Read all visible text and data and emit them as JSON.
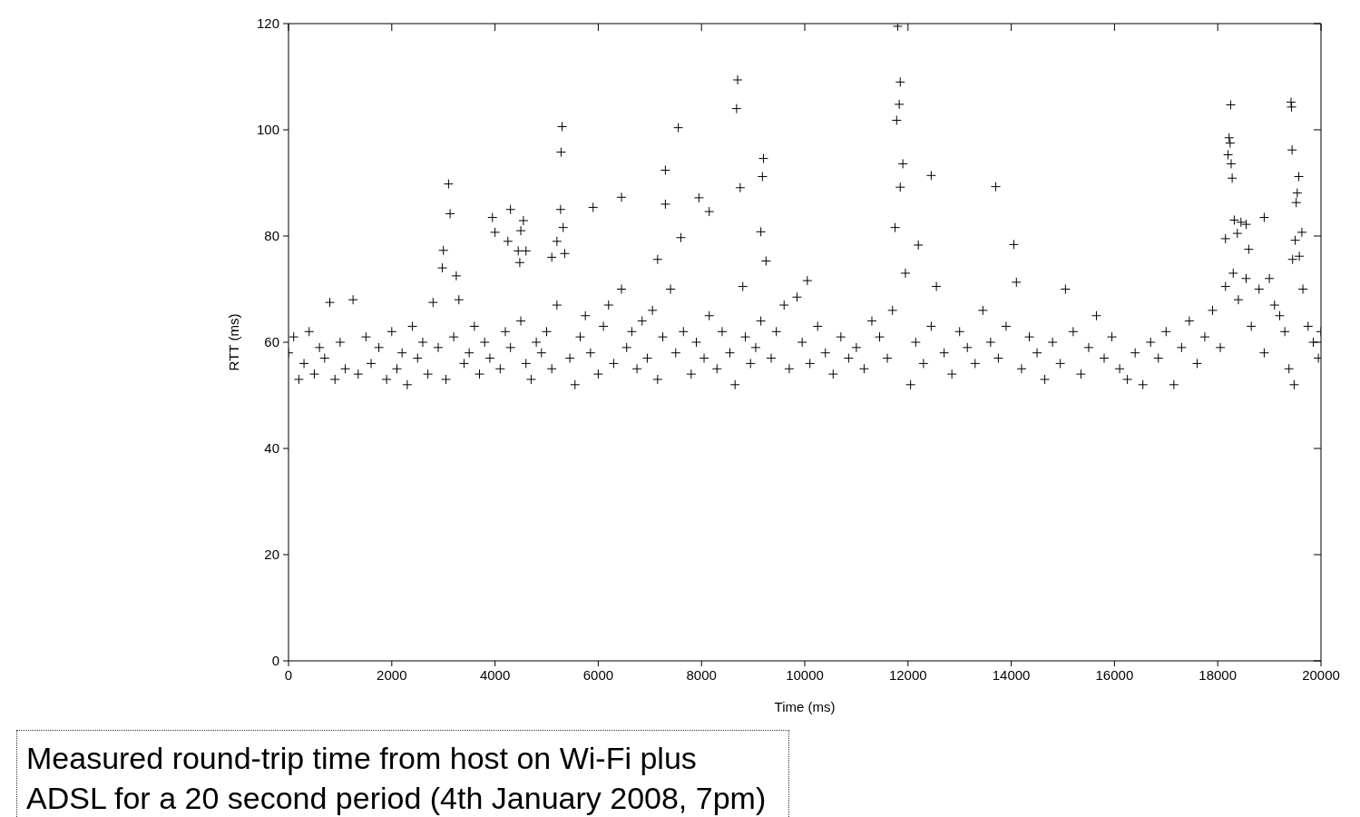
{
  "chart_data": {
    "type": "scatter",
    "xlabel": "Time (ms)",
    "ylabel": "RTT (ms)",
    "annotations": [
      "Measured round-trip time from host on Wi-Fi plus ADSL for a 20 second period (4th January 2008, 7pm)"
    ],
    "xlim": [
      0,
      20000
    ],
    "xticks": [
      0,
      2000,
      4000,
      6000,
      8000,
      10000,
      12000,
      14000,
      16000,
      18000,
      20000
    ],
    "ylim": [
      0,
      120
    ],
    "yticks": [
      0,
      20,
      40,
      60,
      80,
      100,
      120
    ],
    "grid": false,
    "legend": false,
    "marker": "cross",
    "series": [
      {
        "color": "#000000",
        "x": [
          0,
          100,
          200,
          300,
          400,
          500,
          600,
          700,
          800,
          900,
          1000,
          1100,
          1250,
          1350,
          1500,
          1600,
          1750,
          1900,
          2000,
          2100,
          2200,
          2300,
          2400,
          2500,
          2600,
          2700,
          2800,
          2900,
          3050,
          3200,
          3300,
          3400,
          3500,
          3600,
          3700,
          3800,
          3900,
          4100,
          4200,
          4300,
          4500,
          4600,
          4700,
          4800,
          4900,
          5000,
          5100,
          5200,
          5450,
          5550,
          5650,
          5750,
          5850,
          6000,
          6100,
          6200,
          6300,
          6450,
          6550,
          6650,
          6750,
          6850,
          6950,
          7050,
          7150,
          7250,
          7400,
          7500,
          7650,
          7800,
          7900,
          8050,
          8150,
          8300,
          8400,
          8550,
          8650,
          8850,
          8950,
          9050,
          9150,
          9350,
          9450,
          9600,
          9700,
          9850,
          9950,
          10100,
          10250,
          10400,
          10550,
          10700,
          10850,
          11000,
          11150,
          11300,
          11450,
          11600,
          11700,
          11950,
          12050,
          12150,
          12300,
          12450,
          12550,
          12700,
          12850,
          13000,
          13150,
          13300,
          13450,
          13600,
          13750,
          13900,
          14200,
          14350,
          14500,
          14650,
          14800,
          14950,
          15050,
          15200,
          15350,
          15500,
          15650,
          15800,
          15950,
          16100,
          16250,
          16400,
          16550,
          16700,
          16850,
          17000,
          17150,
          17300,
          17450,
          17600,
          17750,
          17900,
          18050,
          18150,
          18300,
          18400,
          18550,
          18650,
          18800,
          18900,
          19000,
          19100,
          19200,
          19300,
          19380,
          19480,
          19650,
          19750,
          19850,
          19950,
          20000,
          3000,
          2980,
          3100,
          3130,
          3250,
          3950,
          4000,
          4300,
          4250,
          4550,
          4500,
          4450,
          4600,
          4480,
          5300,
          5280,
          5270,
          5320,
          5200,
          5350,
          5100,
          5900,
          6450,
          7300,
          7300,
          7550,
          7600,
          7150,
          7950,
          8150,
          8700,
          8680,
          8750,
          8800,
          9200,
          9180,
          9150,
          9250,
          10050,
          11800,
          11850,
          11830,
          11780,
          11900,
          11850,
          11750,
          12200,
          12450,
          13700,
          14050,
          14100,
          18250,
          18220,
          18240,
          18200,
          18260,
          18280,
          18320,
          18150,
          18450,
          18550,
          18380,
          18900,
          18600,
          19420,
          19430,
          19440,
          19570,
          19540,
          19520,
          19630,
          19500,
          19580,
          19450
        ],
        "values": [
          58,
          61,
          53,
          56,
          62,
          54,
          59,
          57,
          67.5,
          53,
          60,
          55,
          68,
          54,
          61,
          56,
          59,
          53,
          62,
          55,
          58,
          52,
          63,
          57,
          60,
          54,
          67.5,
          59,
          53,
          61,
          68,
          56,
          58,
          63,
          54,
          60,
          57,
          55,
          62,
          59,
          64,
          56,
          53,
          60,
          58,
          62,
          55,
          67,
          57,
          52,
          61,
          65,
          58,
          54,
          63,
          67,
          56,
          70,
          59,
          62,
          55,
          64,
          57,
          66,
          53,
          61,
          70,
          58,
          62,
          54,
          60,
          57,
          65,
          55,
          62,
          58,
          52,
          61,
          56,
          59,
          64,
          57,
          62,
          67,
          55,
          68.5,
          60,
          56,
          63,
          58,
          54,
          61,
          57,
          59,
          55,
          64,
          61,
          57,
          66,
          73,
          52,
          60,
          56,
          63,
          70.5,
          58,
          54,
          62,
          59,
          56,
          66,
          60,
          57,
          63,
          55,
          61,
          58,
          53,
          60,
          56,
          70,
          62,
          54,
          59,
          65,
          57,
          61,
          55,
          53,
          58,
          52,
          60,
          57,
          62,
          52,
          59,
          64,
          56,
          61,
          66,
          59,
          70.5,
          73,
          68,
          72,
          63,
          70,
          58,
          72,
          67,
          65,
          62,
          55,
          52,
          70,
          63,
          60,
          57,
          62,
          77.3,
          74,
          89.8,
          84.2,
          72.5,
          83.5,
          80.7,
          85,
          79,
          82.9,
          81,
          77.2,
          77.2,
          75,
          100.6,
          95.8,
          85,
          81.6,
          79,
          76.7,
          76,
          85.4,
          87.3,
          92.4,
          86,
          100.4,
          79.7,
          75.6,
          87.2,
          84.6,
          109.4,
          104,
          89.1,
          70.5,
          94.6,
          91.2,
          80.8,
          75.3,
          71.6,
          119.5,
          109,
          104.8,
          101.8,
          93.6,
          89.2,
          81.6,
          78.3,
          91.4,
          89.3,
          78.4,
          71.3,
          104.7,
          98.5,
          97.5,
          95.3,
          93.6,
          90.9,
          83,
          79.5,
          82.6,
          82.2,
          80.5,
          83.5,
          77.5,
          105.2,
          104.3,
          96.2,
          91.2,
          88.1,
          86.3,
          80.7,
          79.2,
          76.2,
          75.6
        ]
      }
    ]
  }
}
